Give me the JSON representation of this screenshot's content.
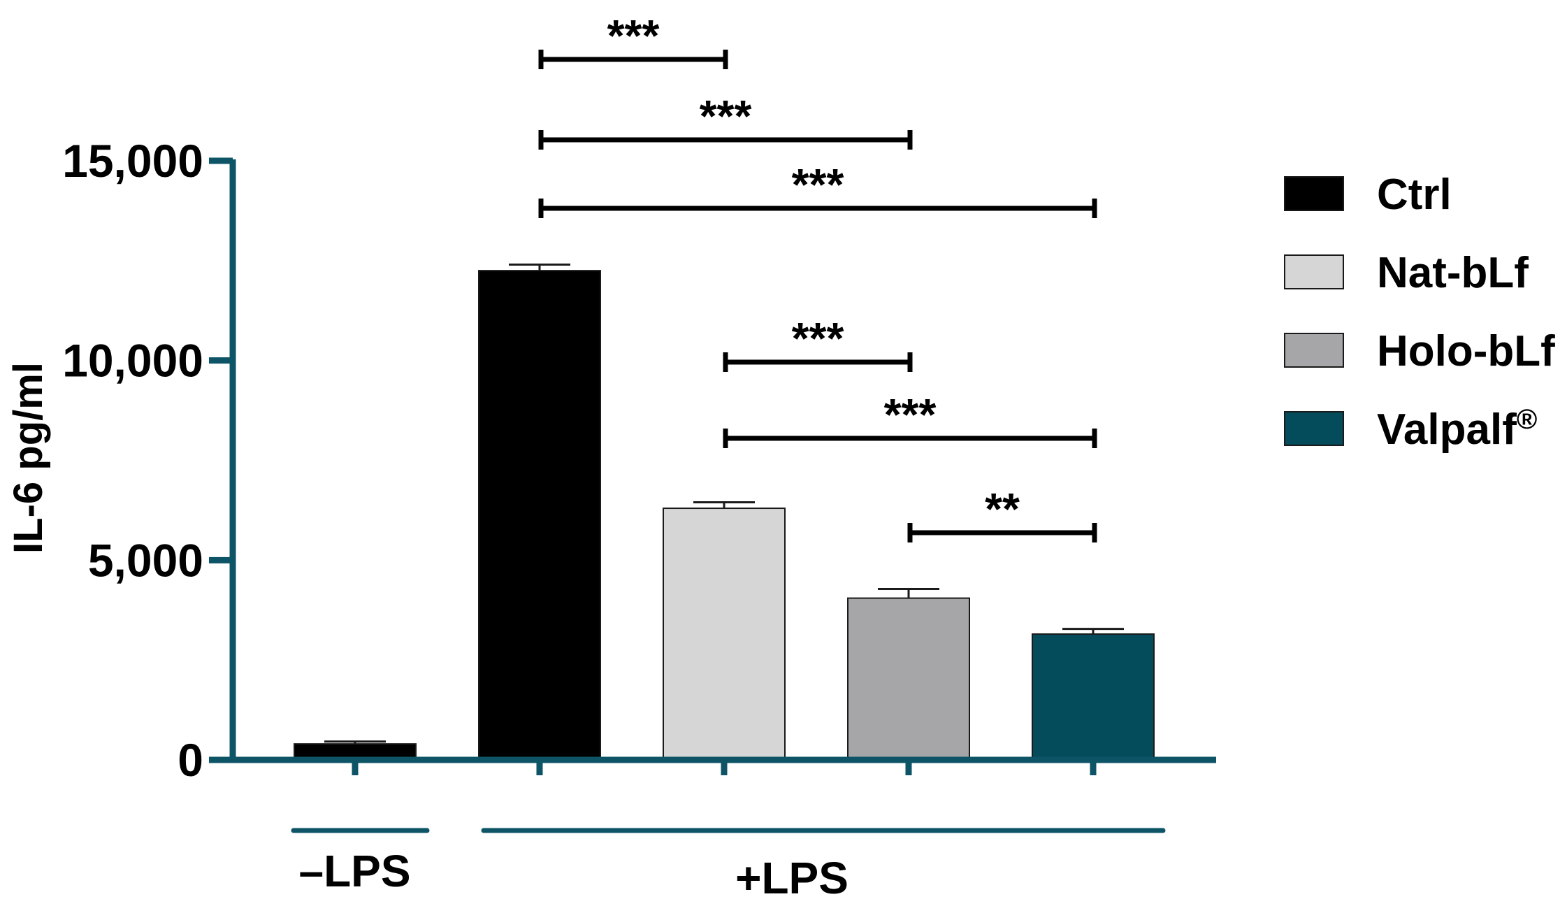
{
  "chart_data": {
    "type": "bar",
    "ylabel": "IL-6 pg/ml",
    "xlabel": "",
    "ylim": [
      0,
      15000
    ],
    "yticks": [
      0,
      5000,
      10000,
      15000
    ],
    "ytick_labels": [
      "0",
      "5,000",
      "10,000",
      "15,000"
    ],
    "grid": false,
    "legend_position": "right",
    "bars": [
      {
        "label": "–LPS",
        "series": "Ctrl",
        "value": 400,
        "error": 60
      },
      {
        "label": "+LPS",
        "series": "Ctrl",
        "value": 12250,
        "error": 150
      },
      {
        "label": "+LPS",
        "series": "Nat-bLf",
        "value": 6300,
        "error": 150
      },
      {
        "label": "+LPS",
        "series": "Holo-bLf",
        "value": 4050,
        "error": 230
      },
      {
        "label": "+LPS",
        "series": "Valpalf®",
        "value": 3150,
        "error": 130
      }
    ],
    "groups": [
      {
        "label": "–LPS",
        "bars": [
          0
        ]
      },
      {
        "label": "+LPS",
        "bars": [
          1,
          2,
          3,
          4
        ]
      }
    ],
    "legend": [
      {
        "name": "Ctrl",
        "color": "#000000"
      },
      {
        "name": "Nat-bLf",
        "color": "#d6d6d6"
      },
      {
        "name": "Holo-bLf",
        "color": "#a6a6a9"
      },
      {
        "name": "Valpalf",
        "superscript": "®",
        "color": "#044b5c"
      }
    ],
    "significance": [
      {
        "from": 1,
        "to": 2,
        "label": "***",
        "level": 7
      },
      {
        "from": 1,
        "to": 3,
        "label": "***",
        "level": 6
      },
      {
        "from": 1,
        "to": 4,
        "label": "***",
        "level": 5
      },
      {
        "from": 2,
        "to": 3,
        "label": "***",
        "level": 3
      },
      {
        "from": 2,
        "to": 4,
        "label": "***",
        "level": 2
      },
      {
        "from": 3,
        "to": 4,
        "label": "**",
        "level": 1
      }
    ],
    "axis_color": "#0d5466"
  }
}
